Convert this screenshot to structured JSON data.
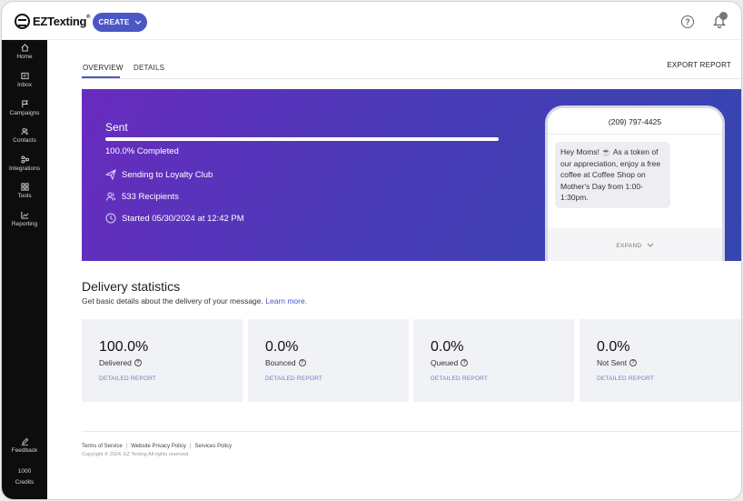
{
  "header": {
    "logo_text": "EZTexting",
    "logo_reg": "®",
    "create_label": "CREATE",
    "help_symbol": "?"
  },
  "sidebar": {
    "items": [
      {
        "label": "Home",
        "icon": "home-icon"
      },
      {
        "label": "Inbox",
        "icon": "inbox-icon"
      },
      {
        "label": "Campaigns",
        "icon": "flag-icon"
      },
      {
        "label": "Contacts",
        "icon": "contacts-icon"
      },
      {
        "label": "Integrations",
        "icon": "integrations-icon"
      },
      {
        "label": "Tools",
        "icon": "tools-icon"
      },
      {
        "label": "Reporting",
        "icon": "chart-icon"
      }
    ],
    "feedback_label": "Feedback",
    "credits_value": "1000",
    "credits_label": "Credits"
  },
  "tabs": {
    "overview": "OVERVIEW",
    "details": "DETAILS",
    "export": "EXPORT REPORT"
  },
  "hero": {
    "status": "Sent",
    "progress_fraction": 1.0,
    "completed_text": "100.0% Completed",
    "sending_to": "Sending to Loyalty Club",
    "recipients": "533 Recipients",
    "started": "Started 05/30/2024 at 12:42 PM",
    "phone_number": "(209) 797-4425",
    "message": "Hey Moms! ☕ As a token of our appreciation, enjoy a free coffee at Coffee Shop on Mother's Day from 1:00-1:30pm.",
    "expand_label": "EXPAND"
  },
  "stats": {
    "title": "Delivery statistics",
    "description": "Get basic details about the delivery of your message.",
    "learn_more": "Learn more.",
    "cards": [
      {
        "value": "100.0%",
        "label": "Delivered",
        "link": "DETAILED REPORT"
      },
      {
        "value": "0.0%",
        "label": "Bounced",
        "link": "DETAILED REPORT"
      },
      {
        "value": "0.0%",
        "label": "Queued",
        "link": "DETAILED REPORT"
      },
      {
        "value": "0.0%",
        "label": "Not Sent",
        "link": "DETAILED REPORT"
      }
    ]
  },
  "footer": {
    "terms": "Terms of Service",
    "privacy": "Website Privacy Policy",
    "services": "Services Policy",
    "separator": "|",
    "copyright": "Copyright © 2024, EZ Texting All rights reserved."
  },
  "colors": {
    "accent": "#4b57c5",
    "sidebar_bg": "#0d0d0d",
    "hero_start": "#6a2bbf",
    "hero_end": "#3446b0",
    "card_bg": "#f1f2f5"
  }
}
